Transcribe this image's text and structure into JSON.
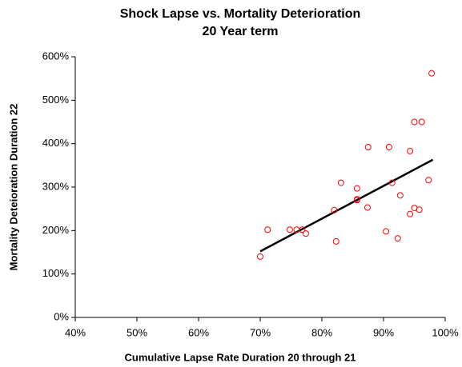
{
  "chart_data": {
    "type": "scatter",
    "title": "Shock Lapse vs. Mortality Deterioration",
    "subtitle": "20 Year term",
    "x_label": "Cumulative Lapse Rate Duration 20 through 21",
    "y_label": "Mortality Deteioration Duration 22",
    "series": [
      {
        "color": "#ff0000",
        "x": [
          70,
          71.2,
          74.8,
          75.9,
          76.8,
          77.4,
          82,
          82.3,
          83.1,
          85.7,
          85.7,
          85.7,
          87.4,
          87.5,
          90.4,
          90.9,
          91.4,
          92.3,
          92.7,
          94.3,
          94.3,
          95,
          95,
          95.8,
          96.2,
          97.3,
          97.8
        ],
        "values": [
          140,
          202,
          202,
          202,
          202,
          193,
          247,
          175,
          310,
          297,
          272,
          270,
          253,
          392,
          198,
          392,
          310,
          182,
          281,
          383,
          238,
          252,
          450,
          248,
          450,
          316,
          562
        ]
      }
    ],
    "trendline": {
      "color": "#000000",
      "x": [
        70,
        98
      ],
      "values": [
        152,
        363
      ]
    },
    "xlim": [
      40,
      100
    ],
    "xticks": [
      {
        "value": 40,
        "label": "40%"
      },
      {
        "value": 50,
        "label": "50%"
      },
      {
        "value": 60,
        "label": "60%"
      },
      {
        "value": 70,
        "label": "70%"
      },
      {
        "value": 80,
        "label": "80%"
      },
      {
        "value": 90,
        "label": "90%"
      },
      {
        "value": 100,
        "label": "100%"
      }
    ],
    "ylim": [
      0,
      600
    ],
    "yticks": [
      {
        "value": 0,
        "label": "0%"
      },
      {
        "value": 100,
        "label": "100%"
      },
      {
        "value": 200,
        "label": "200%"
      },
      {
        "value": 300,
        "label": "300%"
      },
      {
        "value": 400,
        "label": "400%"
      },
      {
        "value": 500,
        "label": "500%"
      },
      {
        "value": 600,
        "label": "600%"
      }
    ],
    "grid": false
  }
}
